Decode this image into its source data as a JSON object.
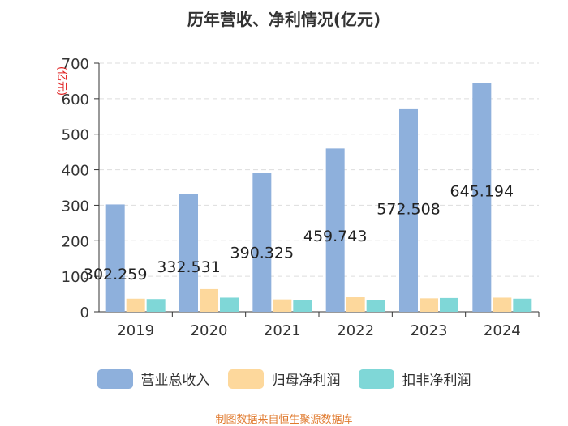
{
  "chart_data": {
    "type": "bar",
    "title": "历年营收、净利情况(亿元)",
    "ylabel": "(亿元)",
    "xlabel": "",
    "categories": [
      "2019",
      "2020",
      "2021",
      "2022",
      "2023",
      "2024"
    ],
    "ylim": [
      0,
      700
    ],
    "yticks": [
      0,
      100,
      200,
      300,
      400,
      500,
      600,
      700
    ],
    "grid": true,
    "legend_position": "bottom",
    "series": [
      {
        "name": "营业总收入",
        "color": "#8eb0dc",
        "values": [
          302.259,
          332.531,
          390.325,
          459.743,
          572.508,
          645.194
        ],
        "labels": [
          "302.259",
          "332.531",
          "390.325",
          "459.743",
          "572.508",
          "645.194"
        ]
      },
      {
        "name": "归母净利润",
        "color": "#fdd89c",
        "values": [
          37,
          64,
          35,
          41,
          38,
          40
        ]
      },
      {
        "name": "扣非净利润",
        "color": "#7fd7d7",
        "values": [
          36,
          40,
          34,
          34,
          39,
          37
        ]
      }
    ],
    "source": "制图数据来自恒生聚源数据库"
  }
}
